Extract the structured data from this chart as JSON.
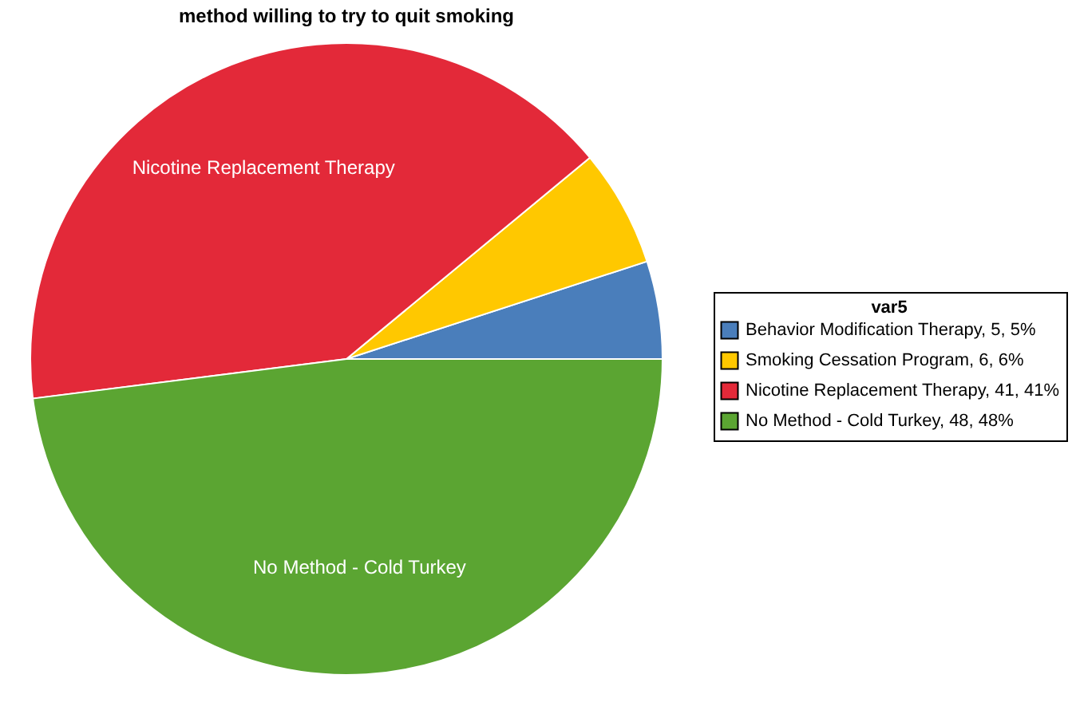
{
  "chart_data": {
    "type": "pie",
    "title": "method willing to try to quit smoking",
    "legend_title": "var5",
    "categories": [
      "Behavior Modification Therapy, 5, 5%",
      "Smoking Cessation Program, 6, 6%",
      "Nicotine Replacement Therapy, 41, 41%",
      "No Method - Cold Turkey, 48, 48%"
    ],
    "values": [
      5,
      6,
      41,
      48
    ],
    "colors": [
      "#4a7ebb",
      "#ffc800",
      "#e32939",
      "#5ba532"
    ],
    "value_labels": [
      null,
      null,
      "Nicotine Replacement Therapy",
      "No Method - Cold Turkey"
    ],
    "legend": "right"
  }
}
